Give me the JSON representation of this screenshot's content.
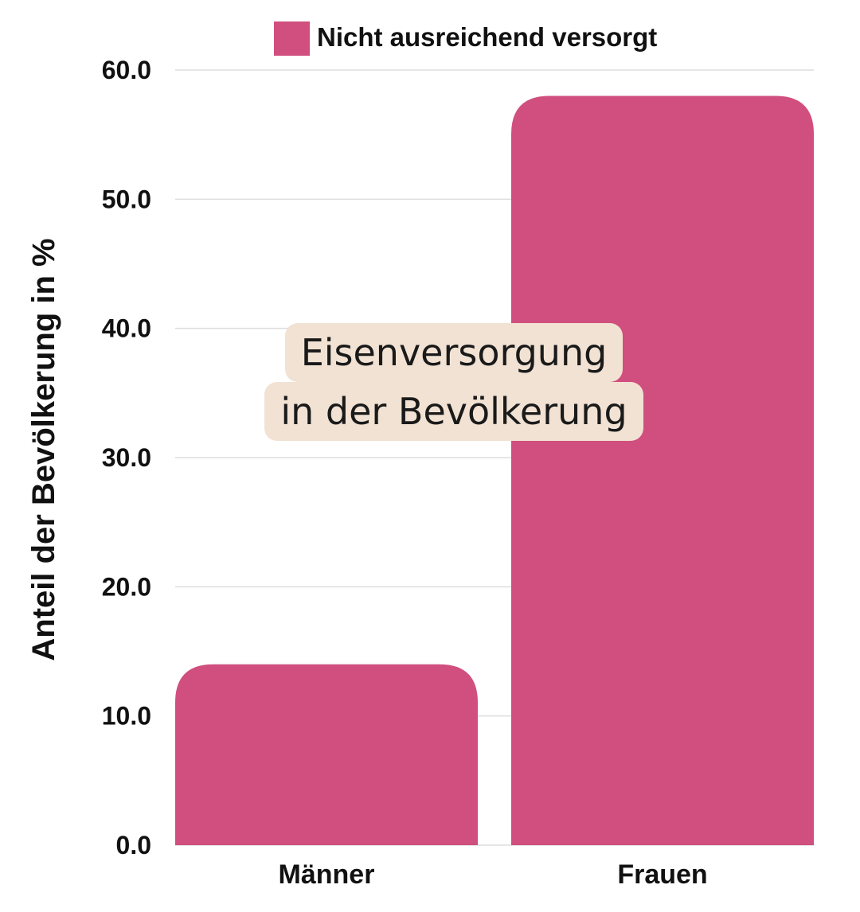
{
  "chart_data": {
    "type": "bar",
    "title": "Eisenversorgung in der Bevölkerung",
    "title_lines": [
      "Eisenversorgung",
      "in der Bevölkerung"
    ],
    "xlabel": "",
    "ylabel": "Anteil der Bevölkerung in %",
    "categories": [
      "Männer",
      "Frauen"
    ],
    "series": [
      {
        "name": "Nicht ausreichend versorgt",
        "values": [
          14.0,
          58.0
        ]
      }
    ],
    "ylim": [
      0,
      60
    ],
    "yticks": [
      "0.0",
      "10.0",
      "20.0",
      "30.0",
      "40.0",
      "50.0",
      "60.0"
    ],
    "grid": true,
    "legend_position": "top",
    "colors": {
      "bar": "#d04f7e",
      "gridline": "#dddddd",
      "title_background": "#f1e2d3"
    }
  }
}
